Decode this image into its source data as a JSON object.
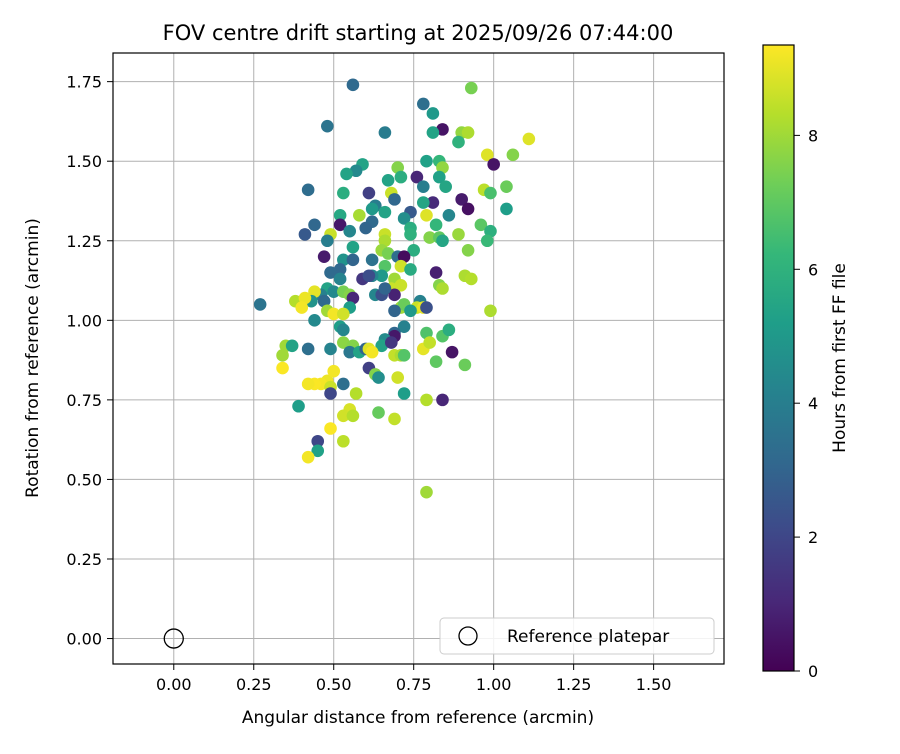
{
  "chart_data": {
    "type": "scatter",
    "title": "FOV centre drift starting at 2025/09/26 07:44:00",
    "xlabel": "Angular distance from reference (arcmin)",
    "ylabel": "Rotation from reference (arcmin)",
    "xlim": [
      -0.19,
      1.72
    ],
    "ylim": [
      -0.08,
      1.84
    ],
    "xticks": [
      0.0,
      0.25,
      0.5,
      0.75,
      1.0,
      1.25,
      1.5
    ],
    "yticks": [
      0.0,
      0.25,
      0.5,
      0.75,
      1.0,
      1.25,
      1.5,
      1.75
    ],
    "grid": true,
    "legend": {
      "label": "Reference platepar",
      "location": "lower-right"
    },
    "reference": {
      "x": 0.0,
      "y": 0.0
    },
    "colorbar": {
      "label": "Hours from first FF file",
      "min": 0,
      "max": 9.35,
      "ticks": [
        0,
        2,
        4,
        6,
        8
      ],
      "colormap": "viridis"
    },
    "colormap_stops": [
      "#440154",
      "#482878",
      "#3e4989",
      "#31688e",
      "#26828e",
      "#1f9e89",
      "#35b779",
      "#6ece58",
      "#b5de2b",
      "#fde725"
    ],
    "points": [
      [
        0.56,
        1.74,
        3.2
      ],
      [
        0.78,
        1.68,
        3.4
      ],
      [
        0.93,
        1.73,
        7.4
      ],
      [
        0.48,
        1.61,
        3.6
      ],
      [
        0.66,
        1.59,
        3.9
      ],
      [
        0.81,
        1.65,
        5.0
      ],
      [
        0.84,
        1.6,
        0.5
      ],
      [
        0.81,
        1.59,
        5.4
      ],
      [
        0.9,
        1.59,
        7.8
      ],
      [
        0.92,
        1.59,
        8.2
      ],
      [
        0.89,
        1.56,
        6.0
      ],
      [
        1.11,
        1.57,
        8.9
      ],
      [
        1.06,
        1.52,
        7.6
      ],
      [
        0.98,
        1.52,
        8.9
      ],
      [
        0.83,
        1.5,
        6.2
      ],
      [
        0.79,
        1.5,
        5.3
      ],
      [
        0.59,
        1.49,
        5.4
      ],
      [
        0.57,
        1.47,
        4.4
      ],
      [
        0.54,
        1.46,
        5.4
      ],
      [
        0.7,
        1.48,
        7.6
      ],
      [
        1.0,
        1.49,
        0.5
      ],
      [
        0.84,
        1.48,
        7.8
      ],
      [
        0.71,
        1.45,
        5.8
      ],
      [
        0.83,
        1.45,
        5.3
      ],
      [
        0.67,
        1.44,
        5.4
      ],
      [
        0.76,
        1.45,
        1.0
      ],
      [
        0.85,
        1.42,
        5.5
      ],
      [
        0.78,
        1.42,
        4.0
      ],
      [
        1.04,
        1.42,
        7.2
      ],
      [
        0.42,
        1.41,
        3.3
      ],
      [
        0.61,
        1.4,
        1.8
      ],
      [
        0.53,
        1.4,
        5.8
      ],
      [
        0.97,
        1.41,
        8.4
      ],
      [
        0.99,
        1.4,
        6.6
      ],
      [
        0.68,
        1.4,
        8.6
      ],
      [
        0.69,
        1.38,
        3.1
      ],
      [
        0.81,
        1.37,
        1.1
      ],
      [
        0.78,
        1.37,
        5.5
      ],
      [
        0.9,
        1.38,
        0.7
      ],
      [
        0.63,
        1.36,
        3.9
      ],
      [
        0.62,
        1.35,
        5.0
      ],
      [
        0.66,
        1.34,
        5.4
      ],
      [
        0.74,
        1.34,
        2.6
      ],
      [
        0.86,
        1.33,
        4.3
      ],
      [
        0.92,
        1.35,
        0.4
      ],
      [
        1.04,
        1.35,
        5.2
      ],
      [
        0.52,
        1.33,
        5.6
      ],
      [
        0.58,
        1.33,
        8.1
      ],
      [
        0.79,
        1.33,
        8.9
      ],
      [
        0.96,
        1.3,
        6.9
      ],
      [
        0.44,
        1.3,
        3.1
      ],
      [
        0.52,
        1.3,
        0.6
      ],
      [
        0.62,
        1.31,
        3.2
      ],
      [
        0.72,
        1.32,
        4.6
      ],
      [
        0.82,
        1.3,
        6.2
      ],
      [
        0.55,
        1.28,
        4.3
      ],
      [
        0.6,
        1.29,
        3.0
      ],
      [
        0.66,
        1.27,
        8.6
      ],
      [
        0.74,
        1.29,
        5.8
      ],
      [
        0.99,
        1.28,
        5.9
      ],
      [
        0.41,
        1.27,
        2.6
      ],
      [
        0.49,
        1.27,
        8.6
      ],
      [
        0.48,
        1.25,
        4.0
      ],
      [
        0.66,
        1.25,
        8.2
      ],
      [
        0.74,
        1.27,
        6.0
      ],
      [
        0.8,
        1.26,
        7.6
      ],
      [
        0.83,
        1.26,
        7.0
      ],
      [
        0.84,
        1.25,
        5.5
      ],
      [
        0.89,
        1.27,
        7.9
      ],
      [
        0.98,
        1.25,
        6.3
      ],
      [
        0.56,
        1.23,
        5.4
      ],
      [
        0.65,
        1.22,
        7.9
      ],
      [
        0.75,
        1.22,
        5.8
      ],
      [
        0.92,
        1.22,
        7.6
      ],
      [
        0.67,
        1.21,
        7.4
      ],
      [
        0.47,
        1.2,
        0.7
      ],
      [
        0.53,
        1.19,
        4.8
      ],
      [
        0.56,
        1.19,
        3.0
      ],
      [
        0.62,
        1.19,
        3.5
      ],
      [
        0.7,
        1.2,
        3.4
      ],
      [
        0.72,
        1.2,
        0.3
      ],
      [
        0.71,
        1.17,
        8.7
      ],
      [
        0.66,
        1.17,
        6.8
      ],
      [
        0.74,
        1.16,
        5.7
      ],
      [
        0.52,
        1.16,
        3.1
      ],
      [
        0.49,
        1.15,
        3.2
      ],
      [
        0.65,
        1.14,
        5.0
      ],
      [
        0.62,
        1.14,
        4.2
      ],
      [
        0.82,
        1.15,
        0.8
      ],
      [
        0.91,
        1.14,
        8.2
      ],
      [
        0.93,
        1.13,
        8.3
      ],
      [
        0.52,
        1.13,
        4.2
      ],
      [
        0.59,
        1.13,
        1.5
      ],
      [
        0.61,
        1.14,
        2.2
      ],
      [
        0.69,
        1.13,
        8.0
      ],
      [
        0.68,
        1.1,
        8.6
      ],
      [
        0.71,
        1.11,
        8.6
      ],
      [
        0.83,
        1.11,
        7.6
      ],
      [
        0.84,
        1.1,
        8.2
      ],
      [
        0.48,
        1.1,
        5.4
      ],
      [
        0.46,
        1.08,
        4.1
      ],
      [
        0.5,
        1.09,
        4.4
      ],
      [
        0.53,
        1.09,
        7.4
      ],
      [
        0.55,
        1.08,
        7.6
      ],
      [
        0.56,
        1.07,
        1.0
      ],
      [
        0.63,
        1.08,
        4.3
      ],
      [
        0.65,
        1.08,
        2.3
      ],
      [
        0.69,
        1.08,
        0.9
      ],
      [
        0.66,
        1.1,
        3.0
      ],
      [
        0.44,
        1.09,
        9.0
      ],
      [
        0.43,
        1.06,
        4.8
      ],
      [
        0.38,
        1.06,
        8.3
      ],
      [
        0.41,
        1.07,
        9.1
      ],
      [
        0.47,
        1.06,
        3.2
      ],
      [
        0.27,
        1.05,
        3.6
      ],
      [
        0.4,
        1.04,
        9.2
      ],
      [
        0.55,
        1.04,
        5.2
      ],
      [
        0.71,
        1.04,
        8.0
      ],
      [
        0.72,
        1.05,
        7.2
      ],
      [
        0.77,
        1.06,
        4.1
      ],
      [
        0.76,
        1.04,
        8.6
      ],
      [
        0.78,
        1.04,
        9.0
      ],
      [
        0.79,
        1.04,
        2.3
      ],
      [
        0.74,
        1.03,
        5.0
      ],
      [
        0.48,
        1.03,
        8.0
      ],
      [
        0.5,
        1.02,
        9.2
      ],
      [
        0.53,
        1.02,
        8.7
      ],
      [
        0.69,
        1.03,
        3.0
      ],
      [
        0.99,
        1.03,
        8.2
      ],
      [
        0.44,
        1.0,
        4.4
      ],
      [
        0.52,
        0.98,
        5.2
      ],
      [
        0.53,
        0.97,
        4.3
      ],
      [
        0.72,
        0.98,
        4.1
      ],
      [
        0.69,
        0.96,
        3.1
      ],
      [
        0.69,
        0.95,
        0.6
      ],
      [
        0.79,
        0.96,
        6.7
      ],
      [
        0.84,
        0.95,
        6.8
      ],
      [
        0.86,
        0.97,
        5.8
      ],
      [
        0.66,
        0.94,
        4.5
      ],
      [
        0.65,
        0.92,
        5.4
      ],
      [
        0.68,
        0.93,
        1.5
      ],
      [
        0.35,
        0.92,
        8.0
      ],
      [
        0.37,
        0.92,
        5.4
      ],
      [
        0.42,
        0.91,
        3.4
      ],
      [
        0.49,
        0.91,
        4.2
      ],
      [
        0.53,
        0.93,
        7.7
      ],
      [
        0.56,
        0.92,
        7.6
      ],
      [
        0.55,
        0.9,
        3.7
      ],
      [
        0.58,
        0.9,
        5.4
      ],
      [
        0.6,
        0.91,
        3.0
      ],
      [
        0.61,
        0.91,
        8.9
      ],
      [
        0.62,
        0.9,
        9.2
      ],
      [
        0.78,
        0.91,
        9.0
      ],
      [
        0.8,
        0.93,
        8.5
      ],
      [
        0.87,
        0.9,
        0.5
      ],
      [
        0.34,
        0.89,
        8.0
      ],
      [
        0.69,
        0.89,
        8.5
      ],
      [
        0.71,
        0.89,
        8.2
      ],
      [
        0.72,
        0.89,
        6.8
      ],
      [
        0.82,
        0.87,
        7.0
      ],
      [
        0.91,
        0.86,
        7.2
      ],
      [
        0.61,
        0.85,
        1.8
      ],
      [
        0.34,
        0.85,
        9.3
      ],
      [
        0.63,
        0.83,
        7.6
      ],
      [
        0.64,
        0.82,
        4.6
      ],
      [
        0.7,
        0.82,
        8.7
      ],
      [
        0.48,
        0.81,
        9.1
      ],
      [
        0.46,
        0.8,
        9.2
      ],
      [
        0.44,
        0.8,
        9.3
      ],
      [
        0.42,
        0.8,
        9.2
      ],
      [
        0.49,
        0.79,
        8.6
      ],
      [
        0.53,
        0.8,
        3.4
      ],
      [
        0.49,
        0.77,
        2.0
      ],
      [
        0.57,
        0.77,
        8.3
      ],
      [
        0.72,
        0.77,
        5.2
      ],
      [
        0.79,
        0.75,
        8.3
      ],
      [
        0.84,
        0.75,
        1.0
      ],
      [
        0.39,
        0.73,
        5.2
      ],
      [
        0.55,
        0.72,
        8.8
      ],
      [
        0.53,
        0.7,
        8.7
      ],
      [
        0.56,
        0.7,
        8.3
      ],
      [
        0.64,
        0.71,
        7.1
      ],
      [
        0.69,
        0.69,
        8.5
      ],
      [
        0.49,
        0.66,
        9.3
      ],
      [
        0.45,
        0.62,
        2.0
      ],
      [
        0.53,
        0.62,
        8.4
      ],
      [
        0.45,
        0.59,
        5.3
      ],
      [
        0.42,
        0.57,
        9.2
      ],
      [
        0.79,
        0.46,
        8.0
      ],
      [
        0.5,
        0.84,
        9.2
      ]
    ]
  }
}
